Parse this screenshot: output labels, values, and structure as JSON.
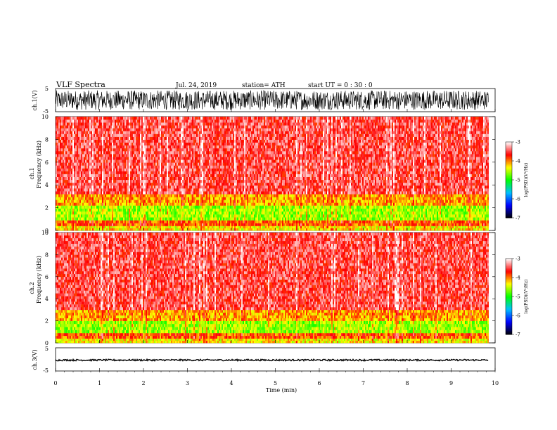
{
  "header": {
    "title": "VLF  Spectra",
    "date": "Jul.  24,  2019",
    "station": "station= ATH",
    "start": "start  UT  =    0  : 30 : 0"
  },
  "colorscale": {
    "label": "log(PSD)(V²/Hz)",
    "ticks": [
      "-3",
      "-4",
      "-5",
      "-6",
      "-7"
    ],
    "range": [
      -7,
      -3
    ],
    "colors": [
      "#000000",
      "#0000ff",
      "#00c0ff",
      "#00ff00",
      "#ffff00",
      "#ff0000",
      "#ffffff"
    ]
  },
  "chart_data": [
    {
      "type": "line",
      "panel": "ch1-waveform",
      "ylabel": "ch.1(V)",
      "ylim": [
        -5,
        5
      ],
      "yticks": [
        "5",
        "-5"
      ],
      "xlim": [
        0,
        10
      ],
      "description_values": "dense noise waveform, amplitude approx ±5 V across 0–9.85 min",
      "color": "#000000"
    },
    {
      "type": "heatmap",
      "panel": "ch1-spectrogram",
      "ylabel_top": "ch.1",
      "ylabel": "Frequency  (kHz)",
      "ylim": [
        0,
        10
      ],
      "yticks": [
        "0",
        "2",
        "4",
        "6",
        "8",
        "10"
      ],
      "xlim": [
        0,
        10
      ],
      "data_end_min": 9.85,
      "profile": [
        {
          "freq_khz": [
            0,
            0.4
          ],
          "log_psd": -4.3
        },
        {
          "freq_khz": [
            0.4,
            0.9
          ],
          "log_psd": -3.9
        },
        {
          "freq_khz": [
            0.9,
            2.2
          ],
          "log_psd": -4.6
        },
        {
          "freq_khz": [
            2.2,
            3.2
          ],
          "log_psd": -4.1
        },
        {
          "freq_khz": [
            3.2,
            10
          ],
          "log_psd": -3.5
        }
      ]
    },
    {
      "type": "heatmap",
      "panel": "ch2-spectrogram",
      "ylabel_top": "ch.2",
      "ylabel": "Frequency  (kHz)",
      "ylim": [
        0,
        10
      ],
      "yticks": [
        "0",
        "2",
        "4",
        "6",
        "8",
        "10"
      ],
      "xlim": [
        0,
        10
      ],
      "data_end_min": 9.85,
      "profile": [
        {
          "freq_khz": [
            0,
            0.4
          ],
          "log_psd": -4.3
        },
        {
          "freq_khz": [
            0.4,
            0.9
          ],
          "log_psd": -3.9
        },
        {
          "freq_khz": [
            0.9,
            2.0
          ],
          "log_psd": -4.6
        },
        {
          "freq_khz": [
            2.0,
            3.0
          ],
          "log_psd": -4.1
        },
        {
          "freq_khz": [
            3.0,
            10
          ],
          "log_psd": -3.5
        }
      ]
    },
    {
      "type": "line",
      "panel": "ch3-waveform",
      "ylabel": "ch.3(V)",
      "ylim": [
        -5,
        5
      ],
      "yticks": [
        "5",
        "-5"
      ],
      "xlim": [
        0,
        10
      ],
      "level_v": -0.3,
      "color": "#000000"
    }
  ],
  "xaxis": {
    "label": "Time  (min)",
    "ticks": [
      "0",
      "1",
      "2",
      "3",
      "4",
      "5",
      "6",
      "7",
      "8",
      "9",
      "10"
    ],
    "range": [
      0,
      10
    ]
  }
}
